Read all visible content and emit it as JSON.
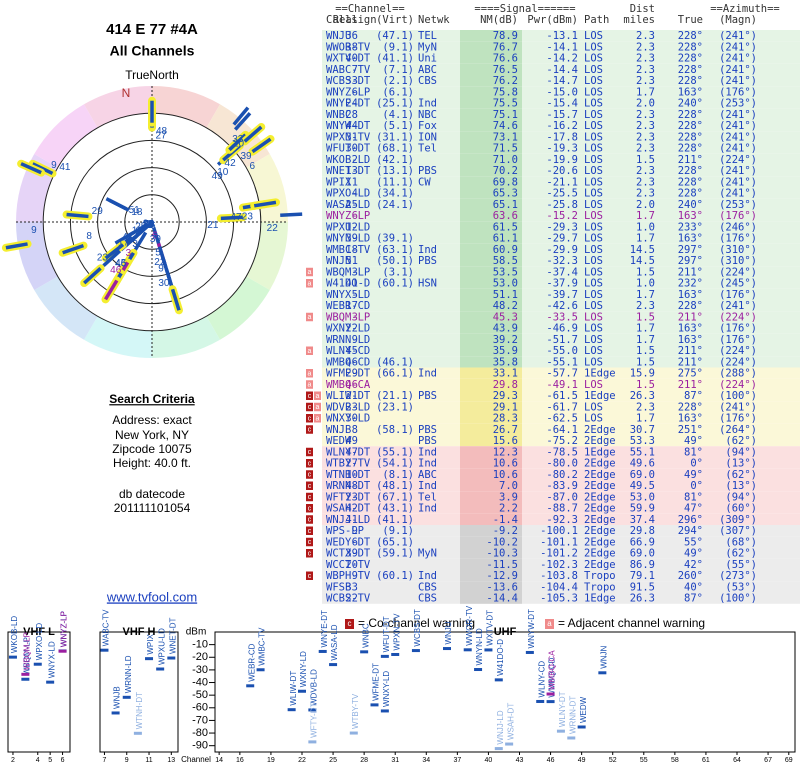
{
  "header": {
    "title": "414 E 77 #4A",
    "subtitle": "All Channels",
    "north_label": "TrueNorth",
    "north_mark": "N"
  },
  "search": {
    "heading": "Search Criteria",
    "lines": [
      "Address: exact",
      "New York, NY",
      "Zipcode 10075",
      "Height: 40.0 ft."
    ],
    "datecode_label": "db datecode",
    "datecode": "201111101054",
    "link": "www.tvfool.com"
  },
  "table": {
    "columns": [
      "==Channel==",
      "====Signal======",
      "Dist",
      "==Azimuth==",
      "Callsign",
      "Real",
      "(Virt)",
      "Netwk",
      "NM(dB)",
      "Pwr(dBm)",
      "Path",
      "miles",
      "True",
      "(Magn)"
    ],
    "rows": [
      {
        "callsign": "WNJU",
        "real": 36,
        "virt": "(47.1)",
        "netwk": "TEL",
        "nm": "78.9",
        "pwr": "-13.1",
        "path": "LOS",
        "dist": "2.3",
        "true": "228°",
        "magn": "(241°)",
        "color": [
          "#e5f4e5",
          "#bfe3bf"
        ]
      },
      {
        "callsign": "WWOR-TV",
        "real": 38,
        "virt": "(9.1)",
        "netwk": "MyN",
        "nm": "76.7",
        "pwr": "-14.1",
        "path": "LOS",
        "dist": "2.3",
        "true": "228°",
        "magn": "(241°)",
        "color": [
          "#e5f4e5",
          "#bfe3bf"
        ]
      },
      {
        "callsign": "WXTV-DT",
        "real": 40,
        "virt": "(41.1)",
        "netwk": "Uni",
        "nm": "76.6",
        "pwr": "-14.2",
        "path": "LOS",
        "dist": "2.3",
        "true": "228°",
        "magn": "(241°)",
        "color": [
          "#e5f4e5",
          "#bfe3bf"
        ]
      },
      {
        "callsign": "WABC-TV",
        "real": 7,
        "virt": "(7.1)",
        "netwk": "ABC",
        "nm": "76.5",
        "pwr": "-14.4",
        "path": "LOS",
        "dist": "2.3",
        "true": "228°",
        "magn": "(241°)",
        "color": [
          "#e5f4e5",
          "#bfe3bf"
        ]
      },
      {
        "callsign": "WCBS-DT",
        "real": 33,
        "virt": "(2.1)",
        "netwk": "CBS",
        "nm": "76.2",
        "pwr": "-14.7",
        "path": "LOS",
        "dist": "2.3",
        "true": "228°",
        "magn": "(241°)",
        "color": [
          "#e5f4e5",
          "#bfe3bf"
        ]
      },
      {
        "callsign": "WNYZ-LP",
        "real": 6,
        "virt": "(6.1)",
        "nm": "75.8",
        "pwr": "-15.0",
        "path": "LOS",
        "dist": "1.7",
        "true": "163°",
        "magn": "(176°)",
        "color": [
          "#e5f4e5",
          "#bfe3bf"
        ]
      },
      {
        "callsign": "WNYE-DT",
        "real": 24,
        "virt": "(25.1)",
        "netwk": "Ind",
        "nm": "75.5",
        "pwr": "-15.4",
        "path": "LOS",
        "dist": "2.0",
        "true": "240°",
        "magn": "(253°)",
        "color": [
          "#e5f4e5",
          "#bfe3bf"
        ]
      },
      {
        "callsign": "WNBC",
        "real": 28,
        "virt": "(4.1)",
        "netwk": "NBC",
        "nm": "75.1",
        "pwr": "-15.7",
        "path": "LOS",
        "dist": "2.3",
        "true": "228°",
        "magn": "(241°)",
        "color": [
          "#e5f4e5",
          "#bfe3bf"
        ]
      },
      {
        "callsign": "WNYW-DT",
        "real": 44,
        "virt": "(5.1)",
        "netwk": "Fox",
        "nm": "74.6",
        "pwr": "-16.2",
        "path": "LOS",
        "dist": "2.3",
        "true": "228°",
        "magn": "(241°)",
        "color": [
          "#e5f4e5",
          "#bfe3bf"
        ]
      },
      {
        "callsign": "WPXN-TV",
        "real": 31,
        "virt": "(31.1)",
        "netwk": "ION",
        "nm": "73.1",
        "pwr": "-17.8",
        "path": "LOS",
        "dist": "2.3",
        "true": "228°",
        "magn": "(241°)",
        "color": [
          "#e5f4e5",
          "#bfe3bf"
        ]
      },
      {
        "callsign": "WFUT-DT",
        "real": 30,
        "virt": "(68.1)",
        "netwk": "Tel",
        "nm": "71.5",
        "pwr": "-19.3",
        "path": "LOS",
        "dist": "2.3",
        "true": "228°",
        "magn": "(241°)",
        "color": [
          "#e5f4e5",
          "#bfe3bf"
        ]
      },
      {
        "callsign": "WKOB-LD",
        "real": 2,
        "virt": "(42.1)",
        "nm": "71.0",
        "pwr": "-19.9",
        "path": "LOS",
        "dist": "1.5",
        "true": "211°",
        "magn": "(224°)",
        "color": [
          "#e5f4e5",
          "#bfe3bf"
        ]
      },
      {
        "callsign": "WNET-DT",
        "real": 13,
        "virt": "(13.1)",
        "netwk": "PBS",
        "nm": "70.2",
        "pwr": "-20.6",
        "path": "LOS",
        "dist": "2.3",
        "true": "228°",
        "magn": "(241°)",
        "color": [
          "#e5f4e5",
          "#bfe3bf"
        ]
      },
      {
        "callsign": "WPIX",
        "real": 11,
        "virt": "(11.1)",
        "netwk": "CW",
        "nm": "69.8",
        "pwr": "-21.1",
        "path": "LOS",
        "dist": "2.3",
        "true": "228°",
        "magn": "(241°)",
        "color": [
          "#e5f4e5",
          "#bfe3bf"
        ]
      },
      {
        "callsign": "WPXO-LD",
        "real": 4,
        "virt": "(34.1)",
        "nm": "65.3",
        "pwr": "-25.5",
        "path": "LOS",
        "dist": "2.3",
        "true": "228°",
        "magn": "(241°)",
        "color": [
          "#e5f4e5",
          "#bfe3bf"
        ]
      },
      {
        "callsign": "WASA-LD",
        "real": 25,
        "virt": "(24.1)",
        "nm": "65.1",
        "pwr": "-25.8",
        "path": "LOS",
        "dist": "2.0",
        "true": "240°",
        "magn": "(253°)",
        "color": [
          "#e5f4e5",
          "#bfe3bf"
        ]
      },
      {
        "callsign": "WNYZ-LP",
        "real": 6,
        "nm": "63.6",
        "pwr": "-15.2",
        "path": "LOS",
        "dist": "1.7",
        "true": "163°",
        "magn": "(176°)",
        "color": [
          "#e5f4e5",
          "#bfe3bf"
        ],
        "text_color": "#9b1fa0"
      },
      {
        "callsign": "WPXU-LD",
        "real": 12,
        "nm": "61.5",
        "pwr": "-29.3",
        "path": "LOS",
        "dist": "1.0",
        "true": "233°",
        "magn": "(246°)",
        "color": [
          "#e5f4e5",
          "#bfe3bf"
        ]
      },
      {
        "callsign": "WNYN-LD",
        "real": 39,
        "virt": "(39.1)",
        "nm": "61.1",
        "pwr": "-29.7",
        "path": "LOS",
        "dist": "1.7",
        "true": "163°",
        "magn": "(176°)",
        "color": [
          "#e5f4e5",
          "#bfe3bf"
        ]
      },
      {
        "callsign": "WMBC-TV",
        "real": 18,
        "virt": "(63.1)",
        "netwk": "Ind",
        "nm": "60.9",
        "pwr": "-29.9",
        "path": "LOS",
        "dist": "14.5",
        "true": "297°",
        "magn": "(310°)",
        "color": [
          "#e5f4e5",
          "#bfe3bf"
        ]
      },
      {
        "callsign": "WNJN",
        "real": 51,
        "virt": "(50.1)",
        "netwk": "PBS",
        "nm": "58.5",
        "pwr": "-32.3",
        "path": "LOS",
        "dist": "14.5",
        "true": "297°",
        "magn": "(310°)",
        "color": [
          "#e5f4e5",
          "#bfe3bf"
        ]
      },
      {
        "callsign": "WBQM-LP",
        "real": 3,
        "virt": "(3.1)",
        "nm": "53.5",
        "pwr": "-37.4",
        "path": "LOS",
        "dist": "1.5",
        "true": "211°",
        "magn": "(224°)",
        "color": [
          "#e5f4e5",
          "#bfe3bf"
        ],
        "warnings": [
          "a"
        ]
      },
      {
        "callsign": "W41DO-D",
        "real": 41,
        "virt": "(60.1)",
        "netwk": "HSN",
        "nm": "53.0",
        "pwr": "-37.9",
        "path": "LOS",
        "dist": "1.0",
        "true": "232°",
        "magn": "(245°)",
        "color": [
          "#e5f4e5",
          "#bfe3bf"
        ],
        "warnings": [
          "a"
        ]
      },
      {
        "callsign": "WNYX-LD",
        "real": 5,
        "nm": "51.1",
        "pwr": "-39.7",
        "path": "LOS",
        "dist": "1.7",
        "true": "163°",
        "magn": "(176°)",
        "color": [
          "#e5f4e5",
          "#bfe3bf"
        ]
      },
      {
        "callsign": "WEBR-CD",
        "real": 17,
        "nm": "48.2",
        "pwr": "-42.6",
        "path": "LOS",
        "dist": "2.3",
        "true": "228°",
        "magn": "(241°)",
        "color": [
          "#e5f4e5",
          "#bfe3bf"
        ]
      },
      {
        "callsign": "WBQM-LP",
        "real": 3,
        "nm": "45.3",
        "pwr": "-33.5",
        "path": "LOS",
        "dist": "1.5",
        "true": "211°",
        "magn": "(224°)",
        "color": [
          "#e5f4e5",
          "#bfe3bf"
        ],
        "text_color": "#9b1fa0",
        "warnings": [
          "a"
        ]
      },
      {
        "callsign": "WXNY-LD",
        "real": 22,
        "nm": "43.9",
        "pwr": "-46.9",
        "path": "LOS",
        "dist": "1.7",
        "true": "163°",
        "magn": "(176°)",
        "color": [
          "#e5f4e5",
          "#bfe3bf"
        ]
      },
      {
        "callsign": "WRNN-LD",
        "real": 9,
        "nm": "39.2",
        "pwr": "-51.7",
        "path": "LOS",
        "dist": "1.7",
        "true": "163°",
        "magn": "(176°)",
        "color": [
          "#e5f4e5",
          "#bfe3bf"
        ]
      },
      {
        "callsign": "WLNY-CD",
        "real": 45,
        "nm": "35.9",
        "pwr": "-55.0",
        "path": "LOS",
        "dist": "1.5",
        "true": "211°",
        "magn": "(224°)",
        "color": [
          "#e5f4e5",
          "#bfe3bf"
        ],
        "warnings": [
          "a"
        ]
      },
      {
        "callsign": "WMBQ-CD",
        "real": 46,
        "virt": "(46.1)",
        "nm": "35.8",
        "pwr": "-55.1",
        "path": "LOS",
        "dist": "1.5",
        "true": "211°",
        "magn": "(224°)",
        "color": [
          "#e5f4e5",
          "#bfe3bf"
        ]
      },
      {
        "callsign": "WFME-DT",
        "real": 29,
        "virt": "(66.1)",
        "netwk": "Ind",
        "nm": "33.1",
        "pwr": "-57.7",
        "path": "1Edge",
        "dist": "15.9",
        "true": "275°",
        "magn": "(288°)",
        "color": [
          "#fbf8d8",
          "#f4ec9c"
        ],
        "warnings": [
          "a"
        ]
      },
      {
        "callsign": "WMBQ-CA",
        "real": 46,
        "nm": "29.8",
        "pwr": "-49.1",
        "path": "LOS",
        "dist": "1.5",
        "true": "211°",
        "magn": "(224°)",
        "color": [
          "#fbf8d8",
          "#f4ec9c"
        ],
        "text_color": "#9b1fa0",
        "warnings": [
          "a"
        ]
      },
      {
        "callsign": "WLIW-DT",
        "real": 21,
        "virt": "(21.1)",
        "netwk": "PBS",
        "nm": "29.3",
        "pwr": "-61.5",
        "path": "1Edge",
        "dist": "26.3",
        "true": "87°",
        "magn": "(100°)",
        "color": [
          "#fbf8d8",
          "#f4ec9c"
        ],
        "warnings": [
          "c",
          "a"
        ]
      },
      {
        "callsign": "WDVB-LD",
        "real": 23,
        "virt": "(23.1)",
        "nm": "29.1",
        "pwr": "-61.7",
        "path": "LOS",
        "dist": "2.3",
        "true": "228°",
        "magn": "(241°)",
        "color": [
          "#fbf8d8",
          "#f4ec9c"
        ],
        "warnings": [
          "c",
          "a"
        ]
      },
      {
        "callsign": "WNXY-LD",
        "real": 30,
        "nm": "28.3",
        "pwr": "-62.5",
        "path": "LOS",
        "dist": "1.7",
        "true": "163°",
        "magn": "(176°)",
        "color": [
          "#fbf8d8",
          "#f4ec9c"
        ],
        "warnings": [
          "c",
          "a"
        ]
      },
      {
        "callsign": "WNJB",
        "real": 8,
        "virt": "(58.1)",
        "netwk": "PBS",
        "nm": "26.7",
        "pwr": "-64.1",
        "path": "2Edge",
        "dist": "30.7",
        "true": "251°",
        "magn": "(264°)",
        "color": [
          "#fbf8d8",
          "#f4ec9c"
        ],
        "warnings": [
          "c"
        ]
      },
      {
        "callsign": "WEDW",
        "real": 49,
        "netwk": "PBS",
        "nm": "15.6",
        "pwr": "-75.2",
        "path": "2Edge",
        "dist": "53.3",
        "true": "49°",
        "magn": "(62°)",
        "color": [
          "#fbf8d8",
          "#f4ec9c"
        ]
      },
      {
        "callsign": "WLNY-DT",
        "real": 47,
        "virt": "(55.1)",
        "netwk": "Ind",
        "nm": "12.3",
        "pwr": "-78.5",
        "path": "1Edge",
        "dist": "55.1",
        "true": "81°",
        "magn": "(94°)",
        "color": [
          "#fbe0e0",
          "#f3bcbc"
        ],
        "warnings": [
          "c"
        ]
      },
      {
        "callsign": "WTBY-TV",
        "real": 27,
        "virt": "(54.1)",
        "netwk": "Ind",
        "nm": "10.6",
        "pwr": "-80.0",
        "path": "2Edge",
        "dist": "49.6",
        "true": "0°",
        "magn": "(13°)",
        "color": [
          "#fbe0e0",
          "#f3bcbc"
        ],
        "warnings": [
          "c"
        ]
      },
      {
        "callsign": "WTNH-DT",
        "real": 10,
        "virt": "(8.1)",
        "netwk": "ABC",
        "nm": "10.6",
        "pwr": "-80.2",
        "path": "2Edge",
        "dist": "69.0",
        "true": "49°",
        "magn": "(62°)",
        "color": [
          "#fbe0e0",
          "#f3bcbc"
        ],
        "warnings": [
          "c"
        ]
      },
      {
        "callsign": "WRNN-DT",
        "real": 48,
        "virt": "(48.1)",
        "netwk": "Ind",
        "nm": "7.0",
        "pwr": "-83.9",
        "path": "2Edge",
        "dist": "49.5",
        "true": "0°",
        "magn": "(13°)",
        "color": [
          "#fbe0e0",
          "#f3bcbc"
        ],
        "warnings": [
          "c"
        ]
      },
      {
        "callsign": "WFTY-DT",
        "real": 23,
        "virt": "(67.1)",
        "netwk": "Tel",
        "nm": "3.9",
        "pwr": "-87.0",
        "path": "2Edge",
        "dist": "53.0",
        "true": "81°",
        "magn": "(94°)",
        "color": [
          "#fbe0e0",
          "#f3bcbc"
        ],
        "warnings": [
          "c"
        ]
      },
      {
        "callsign": "WSAH-DT",
        "real": 42,
        "virt": "(43.1)",
        "netwk": "Ind",
        "nm": "2.2",
        "pwr": "-88.7",
        "path": "2Edge",
        "dist": "59.9",
        "true": "47°",
        "magn": "(60°)",
        "color": [
          "#fbe0e0",
          "#f3bcbc"
        ],
        "warnings": [
          "c"
        ]
      },
      {
        "callsign": "WNJJ-LD",
        "real": 41,
        "virt": "(41.1)",
        "nm": "-1.4",
        "pwr": "-92.3",
        "path": "2Edge",
        "dist": "37.4",
        "true": "296°",
        "magn": "(309°)",
        "color": [
          "#fbe0e0",
          "#f3bcbc"
        ],
        "warnings": [
          "c"
        ]
      },
      {
        "callsign": "WPS-LP",
        "real": 9,
        "virt": "(9.1)",
        "nm": "-9.2",
        "pwr": "-100.1",
        "path": "2Edge",
        "dist": "29.8",
        "true": "294°",
        "magn": "(307°)",
        "color": [
          "#ececec",
          "#d2d2d2"
        ],
        "warnings": [
          "c"
        ]
      },
      {
        "callsign": "WEDY-DT",
        "real": 6,
        "virt": "(65.1)",
        "nm": "-10.2",
        "pwr": "-101.1",
        "path": "2Edge",
        "dist": "66.9",
        "true": "55°",
        "magn": "(68°)",
        "color": [
          "#ececec",
          "#d2d2d2"
        ],
        "warnings": [
          "c"
        ]
      },
      {
        "callsign": "WCTX-DT",
        "real": 39,
        "virt": "(59.1)",
        "netwk": "MyN",
        "nm": "-10.3",
        "pwr": "-101.2",
        "path": "2Edge",
        "dist": "69.0",
        "true": "49°",
        "magn": "(62°)",
        "color": [
          "#ececec",
          "#d2d2d2"
        ],
        "warnings": [
          "c"
        ]
      },
      {
        "callsign": "WCCT-TV",
        "real": 20,
        "nm": "-11.5",
        "pwr": "-102.3",
        "path": "2Edge",
        "dist": "86.9",
        "true": "42°",
        "magn": "(55°)",
        "color": [
          "#ececec",
          "#d2d2d2"
        ]
      },
      {
        "callsign": "WBPH-TV",
        "real": 9,
        "virt": "(60.1)",
        "netwk": "Ind",
        "nm": "-12.9",
        "pwr": "-103.8",
        "path": "Tropo",
        "dist": "79.1",
        "true": "260°",
        "magn": "(273°)",
        "color": [
          "#ececec",
          "#d2d2d2"
        ],
        "warnings": [
          "c"
        ]
      },
      {
        "callsign": "WFSB",
        "real": 33,
        "netwk": "CBS",
        "nm": "-13.6",
        "pwr": "-104.4",
        "path": "Tropo",
        "dist": "91.5",
        "true": "40°",
        "magn": "(53°)",
        "color": [
          "#ececec",
          "#d2d2d2"
        ]
      },
      {
        "callsign": "WCBS-TV",
        "real": 22,
        "netwk": "CBS",
        "nm": "-14.4",
        "pwr": "-105.3",
        "path": "1Edge",
        "dist": "26.3",
        "true": "87°",
        "magn": "(100°)",
        "color": [
          "#ececec",
          "#d2d2d2"
        ]
      }
    ]
  },
  "legend": [
    {
      "icon": "c",
      "text": "= Co-channel warning",
      "color": "#b01818"
    },
    {
      "icon": "a",
      "text": "= Adjacent channel warning",
      "color": "#f08a8a"
    }
  ],
  "spectrum": {
    "y_label": "dBm",
    "x_label": "Channel",
    "ylim": [
      0,
      -95
    ],
    "yticks": [
      -10,
      -20,
      -30,
      -40,
      -50,
      -60,
      -70,
      -80,
      -90
    ],
    "panels": [
      {
        "label": "VHF L",
        "xlim": [
          1.6,
          6.6
        ],
        "xticks": [
          2,
          4,
          5,
          6
        ]
      },
      {
        "label": "VHF H",
        "xlim": [
          6.6,
          13.6
        ],
        "xticks": [
          7,
          9,
          11,
          13
        ]
      },
      {
        "label": "UHF",
        "xlim": [
          13.6,
          69.6
        ],
        "xticks": [
          14,
          16,
          19,
          22,
          25,
          28,
          31,
          34,
          37,
          40,
          43,
          46,
          49,
          52,
          55,
          58,
          61,
          64,
          67,
          69
        ]
      }
    ]
  }
}
